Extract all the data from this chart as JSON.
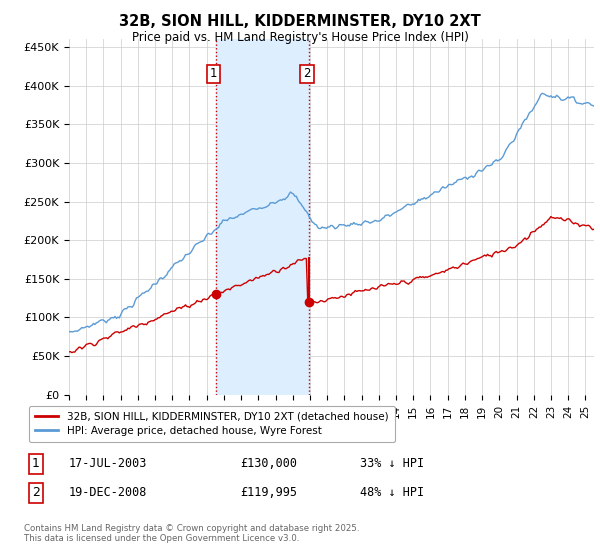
{
  "title": "32B, SION HILL, KIDDERMINSTER, DY10 2XT",
  "subtitle": "Price paid vs. HM Land Registry's House Price Index (HPI)",
  "ylabel_ticks": [
    "£0",
    "£50K",
    "£100K",
    "£150K",
    "£200K",
    "£250K",
    "£300K",
    "£350K",
    "£400K",
    "£450K"
  ],
  "ytick_values": [
    0,
    50000,
    100000,
    150000,
    200000,
    250000,
    300000,
    350000,
    400000,
    450000
  ],
  "ylim": [
    0,
    460000
  ],
  "xlim_start": 1995.0,
  "xlim_end": 2025.5,
  "hpi_color": "#5b9bd5",
  "price_color": "#cc0000",
  "transaction1_x": 2003.54,
  "transaction1_y": 130000,
  "transaction2_x": 2008.97,
  "transaction2_y": 119995,
  "vline_color": "#cc0000",
  "shade_color": "#ddeeff",
  "legend_label1": "32B, SION HILL, KIDDERMINSTER, DY10 2XT (detached house)",
  "legend_label2": "HPI: Average price, detached house, Wyre Forest",
  "table_row1": [
    "1",
    "17-JUL-2003",
    "£130,000",
    "33% ↓ HPI"
  ],
  "table_row2": [
    "2",
    "19-DEC-2008",
    "£119,995",
    "48% ↓ HPI"
  ],
  "footnote": "Contains HM Land Registry data © Crown copyright and database right 2025.\nThis data is licensed under the Open Government Licence v3.0.",
  "background_color": "#ffffff",
  "grid_color": "#cccccc"
}
